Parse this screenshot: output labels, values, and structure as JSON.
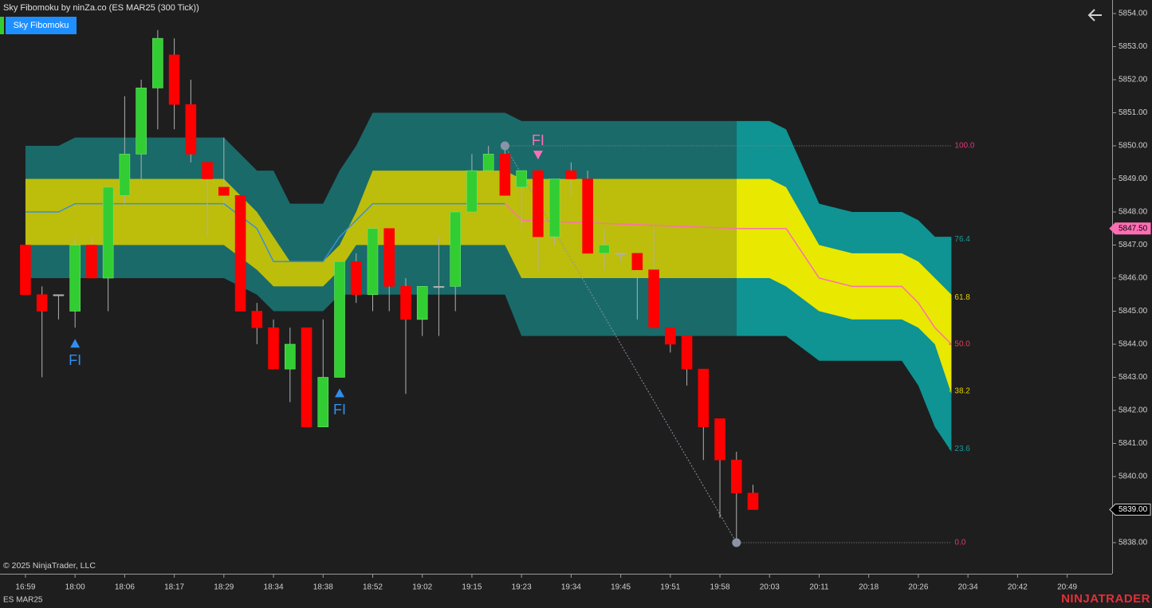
{
  "chart_data": {
    "type": "candlestick",
    "title": "Sky Fibomoku by ninZa.co (ES MAR25 (300 Tick))",
    "indicator_button": "Sky Fibomoku",
    "copyright": "© 2025 NinjaTrader, LLC",
    "instrument": "ES MAR25",
    "brand": "NINJATRADER",
    "xlim": [
      -1.54,
      65.72
    ],
    "ylim": [
      5837.06,
      5854.41
    ],
    "xticks": [
      {
        "value": 0,
        "label": "16:59"
      },
      {
        "value": 3,
        "label": "18:00"
      },
      {
        "value": 6,
        "label": "18:06"
      },
      {
        "value": 9,
        "label": "18:17"
      },
      {
        "value": 12,
        "label": "18:29"
      },
      {
        "value": 15,
        "label": "18:34"
      },
      {
        "value": 18,
        "label": "18:38"
      },
      {
        "value": 21,
        "label": "18:52"
      },
      {
        "value": 24,
        "label": "19:02"
      },
      {
        "value": 27,
        "label": "19:15"
      },
      {
        "value": 30,
        "label": "19:23"
      },
      {
        "value": 33,
        "label": "19:34"
      },
      {
        "value": 36,
        "label": "19:45"
      },
      {
        "value": 39,
        "label": "19:51"
      },
      {
        "value": 42,
        "label": "19:58"
      },
      {
        "value": 45,
        "label": "20:03"
      },
      {
        "value": 48,
        "label": "20:11"
      },
      {
        "value": 51,
        "label": "20:18"
      },
      {
        "value": 54,
        "label": "20:26"
      },
      {
        "value": 57,
        "label": "20:34"
      },
      {
        "value": 60,
        "label": "20:42"
      },
      {
        "value": 63,
        "label": "20:49"
      }
    ],
    "yticks": [
      {
        "value": 5838,
        "label": "5838.00"
      },
      {
        "value": 5839,
        "label": "5839.00"
      },
      {
        "value": 5840,
        "label": "5840.00"
      },
      {
        "value": 5841,
        "label": "5841.00"
      },
      {
        "value": 5842,
        "label": "5842.00"
      },
      {
        "value": 5843,
        "label": "5843.00"
      },
      {
        "value": 5844,
        "label": "5844.00"
      },
      {
        "value": 5845,
        "label": "5845.00"
      },
      {
        "value": 5846,
        "label": "5846.00"
      },
      {
        "value": 5847,
        "label": "5847.00"
      },
      {
        "value": 5848,
        "label": "5848.00"
      },
      {
        "value": 5849,
        "label": "5849.00"
      },
      {
        "value": 5850,
        "label": "5850.00"
      },
      {
        "value": 5851,
        "label": "5851.00"
      },
      {
        "value": 5852,
        "label": "5852.00"
      },
      {
        "value": 5853,
        "label": "5853.00"
      },
      {
        "value": 5854,
        "label": "5854.00"
      }
    ],
    "up_color": "#32cd32",
    "down_color": "#ff0000",
    "wick_color": "#b0b0b0",
    "candles": {
      "open": [
        5847,
        5845.5,
        5845.5,
        5845,
        5847,
        5846,
        5848.5,
        5849.75,
        5851.75,
        5852.75,
        5851.25,
        5849.5,
        5848.75,
        5848.5,
        5845,
        5844.5,
        5843.25,
        5844.5,
        5841.5,
        5843,
        5846.5,
        5845.5,
        5847.5,
        5845.75,
        5844.75,
        5845.75,
        5845.75,
        5848,
        5849.25,
        5849.75,
        5848.75,
        5849.25,
        5847.25,
        5849.25,
        5849,
        5846.75,
        5846.75,
        5846.75,
        5846.25,
        5844.5,
        5844.25,
        5843.25,
        5841.75,
        5840.5,
        5839.5
      ],
      "high": [
        5847,
        5845.75,
        5845.5,
        5847.25,
        5847.25,
        5848.75,
        5851.5,
        5852,
        5853.5,
        5853.25,
        5852,
        5849.5,
        5850.25,
        5848.5,
        5845.25,
        5844.75,
        5844.5,
        5844.5,
        5844.75,
        5846.5,
        5846.75,
        5847.5,
        5847.5,
        5846,
        5845.75,
        5847.25,
        5848,
        5849.75,
        5850,
        5850,
        5849.25,
        5849.25,
        5849,
        5849.5,
        5849.25,
        5847.5,
        5846.75,
        5846.75,
        5847.5,
        5844.5,
        5844.25,
        5843.25,
        5841.75,
        5840.75,
        5839.75
      ],
      "low": [
        5845.5,
        5843,
        5844.75,
        5844.5,
        5846,
        5845,
        5848.25,
        5849,
        5850.5,
        5850.5,
        5849.5,
        5847.25,
        5848.25,
        5845,
        5844,
        5843.25,
        5842.25,
        5841.5,
        5841.5,
        5843,
        5845.25,
        5845,
        5845,
        5842.5,
        5844.25,
        5844.25,
        5845,
        5848,
        5849.25,
        5848.5,
        5847.5,
        5846.25,
        5847,
        5848.5,
        5846.75,
        5846.25,
        5846.5,
        5844.75,
        5844.5,
        5843.75,
        5842.75,
        5840.5,
        5838.75,
        5838,
        5839
      ],
      "close": [
        5845.5,
        5845,
        5845.5,
        5847,
        5846,
        5848.75,
        5849.75,
        5851.75,
        5853.25,
        5851.25,
        5849.75,
        5849,
        5848.5,
        5845,
        5844.5,
        5843.25,
        5844,
        5841.5,
        5843,
        5846.5,
        5845.5,
        5847.5,
        5845.75,
        5844.75,
        5845.75,
        5845.75,
        5848,
        5849.25,
        5849.75,
        5848.5,
        5849.25,
        5847.25,
        5849,
        5849,
        5846.75,
        5847,
        5846.75,
        5846.25,
        5844.5,
        5844,
        5843.25,
        5841.5,
        5840.5,
        5839.5,
        5839
      ]
    },
    "bands": {
      "x": [
        0,
        2,
        3,
        12,
        14,
        15,
        16,
        18,
        19,
        20,
        21,
        29,
        30,
        43,
        45,
        46,
        48,
        50,
        53,
        54,
        55,
        56
      ],
      "outer_top": [
        5850,
        5850,
        5850.25,
        5850.25,
        5849.25,
        5849.25,
        5848.25,
        5848.25,
        5849.25,
        5850,
        5851,
        5851,
        5850.75,
        5850.75,
        5850.75,
        5850.5,
        5848.25,
        5848,
        5848,
        5847.75,
        5847.25,
        5847.25
      ],
      "inner_top": [
        5849,
        5849,
        5849,
        5849,
        5848,
        5847.25,
        5846.5,
        5846.5,
        5847,
        5848,
        5849.25,
        5849.25,
        5849,
        5849,
        5849,
        5848.75,
        5847,
        5846.75,
        5846.75,
        5846.5,
        5846,
        5845.5
      ],
      "inner_bottom": [
        5847,
        5847,
        5847,
        5847,
        5846.25,
        5845.75,
        5845.75,
        5845.75,
        5846.25,
        5847,
        5847,
        5847,
        5846,
        5846,
        5846,
        5845.75,
        5845,
        5844.75,
        5844.75,
        5844.5,
        5844,
        5842.5
      ],
      "outer_bottom": [
        5846,
        5846,
        5846,
        5846,
        5845.5,
        5845,
        5845,
        5845,
        5845.5,
        5845.5,
        5845.5,
        5845.5,
        5844.25,
        5844.25,
        5844.25,
        5844.25,
        5843.5,
        5843.5,
        5843.5,
        5842.75,
        5841.5,
        5840.75
      ],
      "basis_up": [
        5848,
        5848,
        5848.25,
        5848.25,
        5847.5,
        5846.5,
        5846.5,
        5846.5,
        5847.25,
        5847.75,
        5848.25,
        5848.25,
        null,
        null,
        null,
        null,
        null,
        null,
        null,
        null,
        null,
        null
      ],
      "basis_down": [
        null,
        null,
        null,
        null,
        null,
        null,
        null,
        null,
        null,
        null,
        null,
        5848.25,
        5847.75,
        5847.5,
        5847.5,
        5847.5,
        5846,
        5845.75,
        5845.75,
        5845.25,
        5844.5,
        5844
      ],
      "projection_start": 43,
      "outer_color": "#1a6a6a",
      "inner_color": "#bdbd0c",
      "outer_color_projected": "#0f9393",
      "inner_color_projected": "#e8e800",
      "basis_up_color": "#3a8fd8",
      "basis_down_color": "#ff6eb4"
    },
    "swing": {
      "high": 5850,
      "low": 5838,
      "high_x": 29,
      "low_x": 43,
      "end_x": 56,
      "color": "#8a94a6"
    },
    "fib_levels": [
      {
        "value": 100,
        "label": "100.0",
        "color": "#e0357e"
      },
      {
        "value": 76.4,
        "label": "76.4",
        "color": "#1a9a9a"
      },
      {
        "value": 61.8,
        "label": "61.8",
        "color": "#e6d000"
      },
      {
        "value": 50,
        "label": "50.0",
        "color": "#e0405a"
      },
      {
        "value": 38.2,
        "label": "38.2",
        "color": "#e6d000"
      },
      {
        "value": 23.6,
        "label": "23.6",
        "color": "#1a9a9a"
      },
      {
        "value": 0,
        "label": "0.0",
        "color": "#e0357e"
      }
    ],
    "signals": [
      {
        "x": 3,
        "direction": "up",
        "label": "FI",
        "color": "#2f8fef"
      },
      {
        "x": 19,
        "direction": "up",
        "label": "FI",
        "color": "#2f8fef"
      },
      {
        "x": 31,
        "direction": "down",
        "label": "FI",
        "color": "#ff6eb4"
      }
    ],
    "price_markers": [
      {
        "value": 5847.5,
        "label": "5847.50",
        "color": "#ff6eb4",
        "text_color": "#000000"
      },
      {
        "value": 5839,
        "label": "5839.00",
        "color": "#000000",
        "text_color": "#ffffff"
      }
    ]
  }
}
